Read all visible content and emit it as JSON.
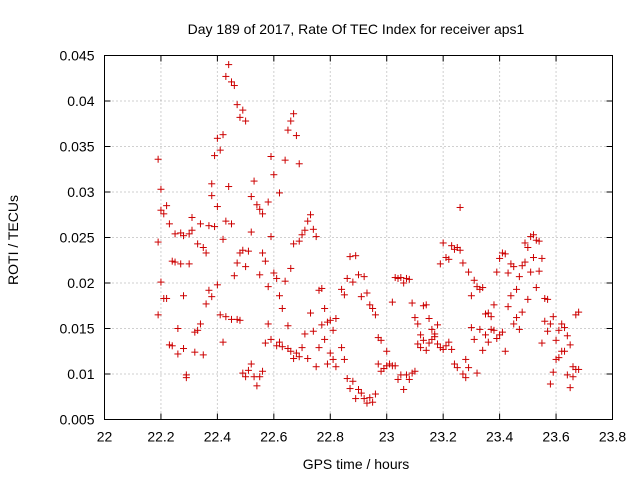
{
  "chart_data": {
    "type": "scatter",
    "title": "Day 189 of 2017, Rate Of TEC Index for receiver aps1",
    "xlabel": "GPS time / hours",
    "ylabel": "ROTI / TECUs",
    "xlim": [
      22,
      23.8
    ],
    "ylim": [
      0.005,
      0.045
    ],
    "xticks": [
      22,
      22.2,
      22.4,
      22.6,
      22.8,
      23,
      23.2,
      23.4,
      23.6,
      23.8
    ],
    "xtick_labels": [
      "22",
      "22.2",
      "22.4",
      "22.6",
      "22.8",
      "23",
      "23.2",
      "23.4",
      "23.6",
      "23.8"
    ],
    "yticks": [
      0.005,
      0.01,
      0.015,
      0.02,
      0.025,
      0.03,
      0.035,
      0.04,
      0.045
    ],
    "ytick_labels": [
      "0.005",
      "0.01",
      "0.015",
      "0.02",
      "0.025",
      "0.03",
      "0.035",
      "0.04",
      "0.045"
    ],
    "grid": true,
    "marker": "plus",
    "color": "#cc0000",
    "points": [
      [
        22.19,
        0.0336
      ],
      [
        22.19,
        0.0245
      ],
      [
        22.19,
        0.0165
      ],
      [
        22.2,
        0.0303
      ],
      [
        22.2,
        0.028
      ],
      [
        22.2,
        0.0201
      ],
      [
        22.21,
        0.0183
      ],
      [
        22.21,
        0.0276
      ],
      [
        22.22,
        0.0285
      ],
      [
        22.22,
        0.0183
      ],
      [
        22.23,
        0.0265
      ],
      [
        22.23,
        0.0132
      ],
      [
        22.24,
        0.0224
      ],
      [
        22.24,
        0.0131
      ],
      [
        22.25,
        0.0254
      ],
      [
        22.25,
        0.0223
      ],
      [
        22.26,
        0.0122
      ],
      [
        22.26,
        0.015
      ],
      [
        22.27,
        0.0255
      ],
      [
        22.27,
        0.0221
      ],
      [
        22.28,
        0.0252
      ],
      [
        22.28,
        0.0186
      ],
      [
        22.28,
        0.0128
      ],
      [
        22.29,
        0.0099
      ],
      [
        22.29,
        0.0096
      ],
      [
        22.3,
        0.0254
      ],
      [
        22.3,
        0.0221
      ],
      [
        22.31,
        0.0272
      ],
      [
        22.31,
        0.0258
      ],
      [
        22.32,
        0.0124
      ],
      [
        22.32,
        0.0146
      ],
      [
        22.33,
        0.0243
      ],
      [
        22.33,
        0.0148
      ],
      [
        22.34,
        0.0265
      ],
      [
        22.34,
        0.0155
      ],
      [
        22.35,
        0.0239
      ],
      [
        22.35,
        0.0121
      ],
      [
        22.36,
        0.0233
      ],
      [
        22.36,
        0.0177
      ],
      [
        22.37,
        0.0263
      ],
      [
        22.37,
        0.0192
      ],
      [
        22.38,
        0.0309
      ],
      [
        22.38,
        0.0296
      ],
      [
        22.38,
        0.0185
      ],
      [
        22.39,
        0.034
      ],
      [
        22.39,
        0.0262
      ],
      [
        22.4,
        0.0359
      ],
      [
        22.4,
        0.0284
      ],
      [
        22.4,
        0.0198
      ],
      [
        22.41,
        0.0346
      ],
      [
        22.41,
        0.0165
      ],
      [
        22.42,
        0.0363
      ],
      [
        22.42,
        0.0248
      ],
      [
        22.42,
        0.0135
      ],
      [
        22.43,
        0.0427
      ],
      [
        22.43,
        0.0268
      ],
      [
        22.43,
        0.0163
      ],
      [
        22.44,
        0.044
      ],
      [
        22.44,
        0.0306
      ],
      [
        22.45,
        0.0421
      ],
      [
        22.45,
        0.0265
      ],
      [
        22.45,
        0.016
      ],
      [
        22.46,
        0.0417
      ],
      [
        22.46,
        0.0208
      ],
      [
        22.47,
        0.0396
      ],
      [
        22.47,
        0.0222
      ],
      [
        22.47,
        0.016
      ],
      [
        22.48,
        0.0382
      ],
      [
        22.48,
        0.0233
      ],
      [
        22.48,
        0.0159
      ],
      [
        22.49,
        0.039
      ],
      [
        22.49,
        0.0236
      ],
      [
        22.49,
        0.0101
      ],
      [
        22.5,
        0.0378
      ],
      [
        22.5,
        0.0218
      ],
      [
        22.5,
        0.0097
      ],
      [
        22.51,
        0.0235
      ],
      [
        22.51,
        0.0104
      ],
      [
        22.52,
        0.0295
      ],
      [
        22.52,
        0.0256
      ],
      [
        22.52,
        0.0111
      ],
      [
        22.53,
        0.0312
      ],
      [
        22.53,
        0.0097
      ],
      [
        22.54,
        0.0286
      ],
      [
        22.54,
        0.0087
      ],
      [
        22.55,
        0.0281
      ],
      [
        22.55,
        0.0209
      ],
      [
        22.55,
        0.0097
      ],
      [
        22.56,
        0.0276
      ],
      [
        22.56,
        0.0233
      ],
      [
        22.56,
        0.0103
      ],
      [
        22.57,
        0.0224
      ],
      [
        22.57,
        0.0134
      ],
      [
        22.58,
        0.0289
      ],
      [
        22.58,
        0.0196
      ],
      [
        22.58,
        0.0155
      ],
      [
        22.59,
        0.0339
      ],
      [
        22.59,
        0.0251
      ],
      [
        22.59,
        0.0138
      ],
      [
        22.6,
        0.0319
      ],
      [
        22.6,
        0.0211
      ],
      [
        22.61,
        0.0205
      ],
      [
        22.61,
        0.0131
      ],
      [
        22.62,
        0.0299
      ],
      [
        22.62,
        0.0186
      ],
      [
        22.62,
        0.0135
      ],
      [
        22.63,
        0.0172
      ],
      [
        22.63,
        0.013
      ],
      [
        22.64,
        0.0335
      ],
      [
        22.64,
        0.0202
      ],
      [
        22.65,
        0.0368
      ],
      [
        22.65,
        0.0153
      ],
      [
        22.65,
        0.0128
      ],
      [
        22.66,
        0.0378
      ],
      [
        22.66,
        0.0216
      ],
      [
        22.66,
        0.0125
      ],
      [
        22.67,
        0.0386
      ],
      [
        22.67,
        0.0243
      ],
      [
        22.67,
        0.0117
      ],
      [
        22.68,
        0.0362
      ],
      [
        22.68,
        0.0123
      ],
      [
        22.69,
        0.0331
      ],
      [
        22.69,
        0.0246
      ],
      [
        22.69,
        0.0119
      ],
      [
        22.7,
        0.0253
      ],
      [
        22.7,
        0.0129
      ],
      [
        22.71,
        0.0258
      ],
      [
        22.71,
        0.0144
      ],
      [
        22.72,
        0.0268
      ],
      [
        22.72,
        0.0117
      ],
      [
        22.73,
        0.0275
      ],
      [
        22.73,
        0.0167
      ],
      [
        22.74,
        0.0259
      ],
      [
        22.74,
        0.0147
      ],
      [
        22.75,
        0.0251
      ],
      [
        22.75,
        0.0108
      ],
      [
        22.76,
        0.0192
      ],
      [
        22.76,
        0.0129
      ],
      [
        22.77,
        0.0194
      ],
      [
        22.77,
        0.0154
      ],
      [
        22.78,
        0.0172
      ],
      [
        22.78,
        0.0138
      ],
      [
        22.79,
        0.0157
      ],
      [
        22.79,
        0.0111
      ],
      [
        22.8,
        0.0159
      ],
      [
        22.8,
        0.0123
      ],
      [
        22.81,
        0.0148
      ],
      [
        22.81,
        0.0116
      ],
      [
        22.82,
        0.0161
      ],
      [
        22.82,
        0.0108
      ],
      [
        22.84,
        0.0193
      ],
      [
        22.84,
        0.0129
      ],
      [
        22.85,
        0.0187
      ],
      [
        22.85,
        0.0116
      ],
      [
        22.86,
        0.0205
      ],
      [
        22.86,
        0.0095
      ],
      [
        22.87,
        0.0229
      ],
      [
        22.87,
        0.0084
      ],
      [
        22.88,
        0.0201
      ],
      [
        22.88,
        0.0092
      ],
      [
        22.89,
        0.023
      ],
      [
        22.89,
        0.0073
      ],
      [
        22.9,
        0.0209
      ],
      [
        22.9,
        0.0083
      ],
      [
        22.91,
        0.0185
      ],
      [
        22.91,
        0.0079
      ],
      [
        22.92,
        0.0207
      ],
      [
        22.92,
        0.0073
      ],
      [
        22.93,
        0.0189
      ],
      [
        22.93,
        0.0068
      ],
      [
        22.94,
        0.0176
      ],
      [
        22.94,
        0.0074
      ],
      [
        22.95,
        0.0172
      ],
      [
        22.95,
        0.0069
      ],
      [
        22.96,
        0.0165
      ],
      [
        22.96,
        0.0078
      ],
      [
        22.97,
        0.014
      ],
      [
        22.97,
        0.0111
      ],
      [
        22.98,
        0.0137
      ],
      [
        22.98,
        0.0103
      ],
      [
        22.99,
        0.0106
      ],
      [
        23.0,
        0.0125
      ],
      [
        23.0,
        0.0109
      ],
      [
        23.01,
        0.0111
      ],
      [
        23.02,
        0.0179
      ],
      [
        23.02,
        0.0109
      ],
      [
        23.03,
        0.0206
      ],
      [
        23.03,
        0.0109
      ],
      [
        23.04,
        0.0205
      ],
      [
        23.04,
        0.0094
      ],
      [
        23.05,
        0.0206
      ],
      [
        23.05,
        0.0099
      ],
      [
        23.06,
        0.02
      ],
      [
        23.06,
        0.0083
      ],
      [
        23.07,
        0.0205
      ],
      [
        23.07,
        0.0099
      ],
      [
        23.08,
        0.0204
      ],
      [
        23.08,
        0.0094
      ],
      [
        23.09,
        0.0178
      ],
      [
        23.09,
        0.0101
      ],
      [
        23.1,
        0.0162
      ],
      [
        23.1,
        0.0103
      ],
      [
        23.11,
        0.0155
      ],
      [
        23.11,
        0.0133
      ],
      [
        23.12,
        0.0143
      ],
      [
        23.12,
        0.0129
      ],
      [
        23.13,
        0.0175
      ],
      [
        23.13,
        0.0137
      ],
      [
        23.14,
        0.0176
      ],
      [
        23.14,
        0.0126
      ],
      [
        23.15,
        0.0161
      ],
      [
        23.15,
        0.0134
      ],
      [
        23.16,
        0.0138
      ],
      [
        23.16,
        0.0149
      ],
      [
        23.17,
        0.0144
      ],
      [
        23.17,
        0.0141
      ],
      [
        23.18,
        0.0154
      ],
      [
        23.18,
        0.0133
      ],
      [
        23.19,
        0.0221
      ],
      [
        23.19,
        0.0129
      ],
      [
        23.2,
        0.0244
      ],
      [
        23.2,
        0.0127
      ],
      [
        23.21,
        0.0228
      ],
      [
        23.21,
        0.0131
      ],
      [
        23.22,
        0.0226
      ],
      [
        23.22,
        0.0135
      ],
      [
        23.23,
        0.0241
      ],
      [
        23.23,
        0.0127
      ],
      [
        23.24,
        0.0237
      ],
      [
        23.24,
        0.0111
      ],
      [
        23.25,
        0.0239
      ],
      [
        23.25,
        0.0107
      ],
      [
        23.26,
        0.0236
      ],
      [
        23.26,
        0.0283
      ],
      [
        23.27,
        0.0222
      ],
      [
        23.27,
        0.01
      ],
      [
        23.28,
        0.0116
      ],
      [
        23.28,
        0.0096
      ],
      [
        23.29,
        0.0212
      ],
      [
        23.29,
        0.0107
      ],
      [
        23.3,
        0.0186
      ],
      [
        23.3,
        0.0151
      ],
      [
        23.31,
        0.0203
      ],
      [
        23.31,
        0.0138
      ],
      [
        23.32,
        0.0196
      ],
      [
        23.32,
        0.0101
      ],
      [
        23.33,
        0.0193
      ],
      [
        23.33,
        0.0149
      ],
      [
        23.34,
        0.0195
      ],
      [
        23.34,
        0.0126
      ],
      [
        23.35,
        0.0166
      ],
      [
        23.35,
        0.0143
      ],
      [
        23.36,
        0.0167
      ],
      [
        23.36,
        0.0135
      ],
      [
        23.37,
        0.0163
      ],
      [
        23.37,
        0.0149
      ],
      [
        23.38,
        0.0176
      ],
      [
        23.38,
        0.0148
      ],
      [
        23.39,
        0.0212
      ],
      [
        23.39,
        0.0139
      ],
      [
        23.4,
        0.0227
      ],
      [
        23.4,
        0.0143
      ],
      [
        23.41,
        0.0233
      ],
      [
        23.41,
        0.0146
      ],
      [
        23.42,
        0.0232
      ],
      [
        23.42,
        0.0125
      ],
      [
        23.43,
        0.0211
      ],
      [
        23.43,
        0.0174
      ],
      [
        23.44,
        0.0221
      ],
      [
        23.44,
        0.0186
      ],
      [
        23.45,
        0.0218
      ],
      [
        23.45,
        0.0155
      ],
      [
        23.46,
        0.0193
      ],
      [
        23.46,
        0.0162
      ],
      [
        23.47,
        0.0207
      ],
      [
        23.47,
        0.0149
      ],
      [
        23.48,
        0.0219
      ],
      [
        23.48,
        0.0168
      ],
      [
        23.49,
        0.0223
      ],
      [
        23.49,
        0.0244
      ],
      [
        23.5,
        0.0239
      ],
      [
        23.5,
        0.0182
      ],
      [
        23.51,
        0.0251
      ],
      [
        23.51,
        0.0212
      ],
      [
        23.52,
        0.0253
      ],
      [
        23.52,
        0.0228
      ],
      [
        23.53,
        0.0247
      ],
      [
        23.53,
        0.0195
      ],
      [
        23.54,
        0.0246
      ],
      [
        23.54,
        0.0213
      ],
      [
        23.55,
        0.0227
      ],
      [
        23.55,
        0.0134
      ],
      [
        23.56,
        0.0183
      ],
      [
        23.56,
        0.0158
      ],
      [
        23.57,
        0.0182
      ],
      [
        23.57,
        0.0147
      ],
      [
        23.58,
        0.0155
      ],
      [
        23.58,
        0.0089
      ],
      [
        23.59,
        0.0163
      ],
      [
        23.59,
        0.0102
      ],
      [
        23.6,
        0.0137
      ],
      [
        23.6,
        0.0116
      ],
      [
        23.61,
        0.0148
      ],
      [
        23.61,
        0.0118
      ],
      [
        23.62,
        0.0155
      ],
      [
        23.62,
        0.0125
      ],
      [
        23.63,
        0.0151
      ],
      [
        23.63,
        0.0125
      ],
      [
        23.64,
        0.0142
      ],
      [
        23.64,
        0.0099
      ],
      [
        23.65,
        0.0132
      ],
      [
        23.65,
        0.0085
      ],
      [
        23.66,
        0.0108
      ],
      [
        23.66,
        0.0097
      ],
      [
        23.67,
        0.0165
      ],
      [
        23.67,
        0.0105
      ],
      [
        23.68,
        0.0168
      ],
      [
        23.68,
        0.0105
      ]
    ]
  }
}
